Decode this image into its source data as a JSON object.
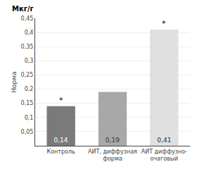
{
  "chart_data": {
    "type": "bar",
    "categories": [
      "Контроль",
      "АИТ, диффузная\nформа",
      "АИТ диффузно-\nочаговый"
    ],
    "values": [
      0.14,
      0.19,
      0.41
    ],
    "value_labels": [
      "0,14",
      "0,19",
      "0,41"
    ],
    "data_labels": true,
    "colors": [
      "#7a7a7a",
      "#a8a8a8",
      "#e0e0e0"
    ],
    "ylabel": "Норма",
    "annotations": [
      {
        "text": "Мкг/г"
      },
      {
        "text": "*",
        "category": "Контроль"
      },
      {
        "text": "*",
        "category": "АИТ диффузно-\nочаговый"
      }
    ],
    "ylim": [
      0,
      0.45
    ],
    "yticks": [
      {
        "value": 0.05,
        "label": "0,05"
      },
      {
        "value": 0.1,
        "label": "0,1"
      },
      {
        "value": 0.15,
        "label": "0,15"
      },
      {
        "value": 0.2,
        "label": "0,2"
      },
      {
        "value": 0.25,
        "label": "0,25"
      },
      {
        "value": 0.3,
        "label": "0,3"
      },
      {
        "value": 0.35,
        "label": "0,35"
      },
      {
        "value": 0.4,
        "label": "0,4"
      },
      {
        "value": 0.45,
        "label": "0,45"
      }
    ],
    "grid": true
  }
}
